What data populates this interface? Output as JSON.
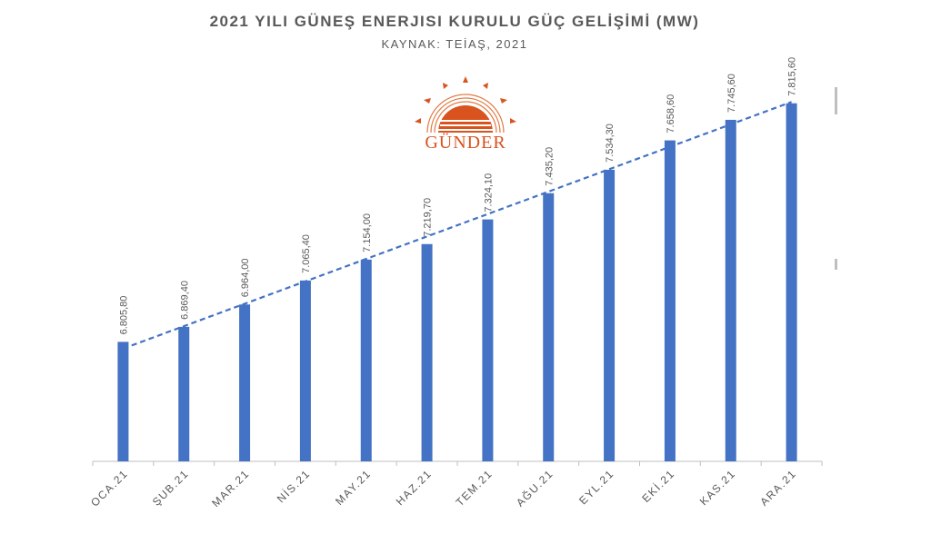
{
  "title": "2021 YILI GÜNEŞ ENERJISI KURULU GÜÇ GELİŞİMİ (MW)",
  "subtitle": "KAYNAK: TEİAŞ, 2021",
  "logo": {
    "text": "GÜNDER",
    "color": "#d9531e"
  },
  "colors": {
    "bar": "#4472c4",
    "trend": "#4472c4",
    "axis": "#bfbfbf",
    "label": "#595959"
  },
  "chart_data": {
    "type": "bar",
    "title": "2021 YILI GÜNEŞ ENERJISI KURULU GÜÇ GELİŞİMİ (MW)",
    "subtitle": "KAYNAK: TEİAŞ, 2021",
    "categories": [
      "OCA.21",
      "ŞUB.21",
      "MAR.21",
      "NİS.21",
      "MAY.21",
      "HAZ.21",
      "TEM.21",
      "AĞU.21",
      "EYL.21",
      "EKİ.21",
      "KAS.21",
      "ARA.21"
    ],
    "values": [
      6805.8,
      6869.4,
      6964.0,
      7065.4,
      7154.0,
      7219.7,
      7324.1,
      7435.2,
      7534.3,
      7658.6,
      7745.6,
      7815.6
    ],
    "data_labels": [
      "6.805,80",
      "6.869,40",
      "6.964,00",
      "7.065,40",
      "7.154,00",
      "7.219,70",
      "7.324,10",
      "7.435,20",
      "7.534,30",
      "7.658,60",
      "7.745,60",
      "7.815,60"
    ],
    "trendline": "linear",
    "ylim": [
      6300,
      7830
    ],
    "grid": false,
    "legend": "none"
  }
}
